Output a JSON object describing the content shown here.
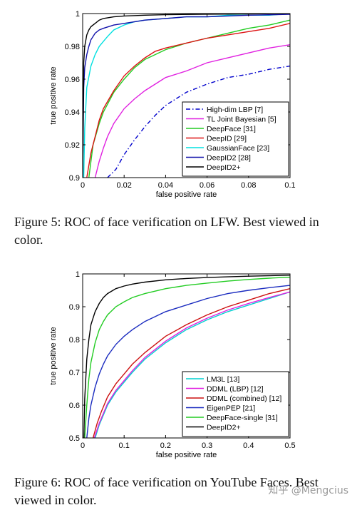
{
  "figures": [
    {
      "caption": "Figure 5: ROC of face verification on LFW. Best viewed in color."
    },
    {
      "caption": "Figure 6: ROC of face verification on YouTube Faces. Best viewed in color."
    }
  ],
  "watermark": "知乎 @Mengcius",
  "chart_data": [
    {
      "type": "line",
      "xlabel": "false positive rate",
      "ylabel": "true positive rate",
      "xlim": [
        0,
        0.1
      ],
      "ylim": [
        0.9,
        1
      ],
      "xticks": [
        0,
        0.02,
        0.04,
        0.06,
        0.08,
        0.1
      ],
      "xtick_labels": [
        "0",
        "0.02",
        "0.04",
        "0.06",
        "0.08",
        "0.1"
      ],
      "yticks": [
        0.9,
        0.92,
        0.94,
        0.96,
        0.98,
        1
      ],
      "ytick_labels": [
        "0.9",
        "0.92",
        "0.94",
        "0.96",
        "0.98",
        "1"
      ],
      "grid": false,
      "legend": "bottom-right",
      "series": [
        {
          "name": "High-dim LBP [7]",
          "color": "#0000cc",
          "dash": true,
          "x": [
            0.012,
            0.016,
            0.02,
            0.025,
            0.03,
            0.035,
            0.04,
            0.045,
            0.05,
            0.06,
            0.07,
            0.08,
            0.09,
            0.1
          ],
          "y": [
            0.9,
            0.905,
            0.914,
            0.923,
            0.931,
            0.938,
            0.944,
            0.948,
            0.952,
            0.957,
            0.961,
            0.963,
            0.966,
            0.968
          ]
        },
        {
          "name": "TL Joint Bayesian   [5]",
          "color": "#e020e0",
          "x": [
            0.006,
            0.008,
            0.01,
            0.012,
            0.015,
            0.02,
            0.025,
            0.03,
            0.035,
            0.04,
            0.05,
            0.06,
            0.07,
            0.08,
            0.09,
            0.1
          ],
          "y": [
            0.9,
            0.91,
            0.918,
            0.925,
            0.933,
            0.942,
            0.948,
            0.953,
            0.957,
            0.961,
            0.965,
            0.97,
            0.973,
            0.976,
            0.979,
            0.981
          ]
        },
        {
          "name": "DeepFace [31]",
          "color": "#22cc22",
          "x": [
            0.003,
            0.005,
            0.008,
            0.01,
            0.015,
            0.02,
            0.025,
            0.03,
            0.035,
            0.04,
            0.05,
            0.06,
            0.07,
            0.08,
            0.09,
            0.1
          ],
          "y": [
            0.9,
            0.92,
            0.933,
            0.94,
            0.952,
            0.96,
            0.967,
            0.972,
            0.975,
            0.978,
            0.982,
            0.985,
            0.988,
            0.991,
            0.993,
            0.996
          ]
        },
        {
          "name": "DeepID [29]",
          "color": "#dd1111",
          "x": [
            0.002,
            0.004,
            0.006,
            0.008,
            0.01,
            0.015,
            0.02,
            0.025,
            0.03,
            0.035,
            0.04,
            0.05,
            0.06,
            0.07,
            0.08,
            0.09,
            0.1
          ],
          "y": [
            0.9,
            0.915,
            0.925,
            0.935,
            0.942,
            0.953,
            0.962,
            0.968,
            0.973,
            0.977,
            0.979,
            0.982,
            0.985,
            0.987,
            0.989,
            0.991,
            0.994
          ]
        },
        {
          "name": "GaussianFace [23]",
          "color": "#00e0e0",
          "x": [
            0.0005,
            0.001,
            0.002,
            0.004,
            0.006,
            0.008,
            0.01,
            0.012,
            0.015,
            0.02,
            0.025,
            0.03,
            0.04,
            0.05,
            0.06,
            0.07,
            0.08,
            0.09,
            0.1
          ],
          "y": [
            0.9,
            0.93,
            0.955,
            0.968,
            0.975,
            0.98,
            0.983,
            0.986,
            0.99,
            0.993,
            0.995,
            0.996,
            0.997,
            0.998,
            0.998,
            0.999,
            0.999,
            0.999,
            1
          ]
        },
        {
          "name": "DeepID2 [28]",
          "color": "#1111aa",
          "x": [
            0,
            0.0005,
            0.001,
            0.002,
            0.003,
            0.004,
            0.006,
            0.008,
            0.01,
            0.015,
            0.02,
            0.03,
            0.04,
            0.05,
            0.06,
            0.08,
            0.1
          ],
          "y": [
            0.9,
            0.955,
            0.967,
            0.975,
            0.98,
            0.984,
            0.988,
            0.99,
            0.991,
            0.993,
            0.994,
            0.996,
            0.997,
            0.998,
            0.998,
            0.999,
            0.9995
          ]
        },
        {
          "name": "DeepID2+",
          "color": "#000000",
          "x": [
            0,
            0.0005,
            0.001,
            0.002,
            0.003,
            0.004,
            0.006,
            0.008,
            0.01,
            0.015,
            0.02,
            0.03,
            0.04,
            0.06,
            0.08,
            0.1
          ],
          "y": [
            0.9,
            0.97,
            0.98,
            0.987,
            0.99,
            0.992,
            0.994,
            0.996,
            0.997,
            0.998,
            0.9985,
            0.999,
            0.9993,
            0.9996,
            0.9998,
            1
          ]
        }
      ]
    },
    {
      "type": "line",
      "xlabel": "false positive rate",
      "ylabel": "true positive rate",
      "xlim": [
        0,
        0.5
      ],
      "ylim": [
        0.5,
        1
      ],
      "xticks": [
        0,
        0.1,
        0.2,
        0.3,
        0.4,
        0.5
      ],
      "xtick_labels": [
        "0",
        "0.1",
        "0.2",
        "0.3",
        "0.4",
        "0.5"
      ],
      "yticks": [
        0.5,
        0.6,
        0.7,
        0.8,
        0.9,
        1
      ],
      "ytick_labels": [
        "0.5",
        "0.6",
        "0.7",
        "0.8",
        "0.9",
        "1"
      ],
      "grid": false,
      "legend": "bottom-right",
      "series": [
        {
          "name": "LM3L [13]",
          "color": "#00d0d0",
          "x": [
            0.03,
            0.04,
            0.05,
            0.06,
            0.08,
            0.1,
            0.12,
            0.15,
            0.2,
            0.25,
            0.3,
            0.35,
            0.4,
            0.45,
            0.5
          ],
          "y": [
            0.5,
            0.54,
            0.57,
            0.6,
            0.64,
            0.67,
            0.7,
            0.74,
            0.79,
            0.83,
            0.86,
            0.885,
            0.905,
            0.925,
            0.945
          ]
        },
        {
          "name": "DDML (LBP)   [12]",
          "color": "#e020e0",
          "x": [
            0.028,
            0.04,
            0.05,
            0.06,
            0.08,
            0.1,
            0.12,
            0.15,
            0.2,
            0.25,
            0.3,
            0.35,
            0.4,
            0.45,
            0.5
          ],
          "y": [
            0.5,
            0.545,
            0.575,
            0.605,
            0.645,
            0.675,
            0.705,
            0.745,
            0.795,
            0.835,
            0.865,
            0.89,
            0.91,
            0.928,
            0.945
          ]
        },
        {
          "name": "DDML (combined) [12]",
          "color": "#cc1111",
          "x": [
            0.025,
            0.035,
            0.045,
            0.06,
            0.08,
            0.1,
            0.12,
            0.15,
            0.2,
            0.25,
            0.3,
            0.35,
            0.4,
            0.45,
            0.5
          ],
          "y": [
            0.5,
            0.545,
            0.58,
            0.625,
            0.665,
            0.695,
            0.725,
            0.76,
            0.81,
            0.845,
            0.875,
            0.9,
            0.92,
            0.94,
            0.955
          ]
        },
        {
          "name": "EigenPEP [21]",
          "color": "#1a2bbf",
          "x": [
            0.01,
            0.015,
            0.02,
            0.03,
            0.04,
            0.05,
            0.06,
            0.08,
            0.1,
            0.12,
            0.15,
            0.2,
            0.25,
            0.3,
            0.35,
            0.4,
            0.45,
            0.5
          ],
          "y": [
            0.5,
            0.56,
            0.6,
            0.655,
            0.695,
            0.725,
            0.75,
            0.785,
            0.81,
            0.83,
            0.855,
            0.885,
            0.905,
            0.925,
            0.94,
            0.95,
            0.958,
            0.965
          ]
        },
        {
          "name": "DeepFace-single [31]",
          "color": "#22cc22",
          "x": [
            0.005,
            0.01,
            0.015,
            0.02,
            0.03,
            0.04,
            0.05,
            0.06,
            0.08,
            0.1,
            0.12,
            0.15,
            0.2,
            0.25,
            0.3,
            0.35,
            0.4,
            0.45,
            0.5
          ],
          "y": [
            0.5,
            0.6,
            0.68,
            0.73,
            0.79,
            0.83,
            0.855,
            0.875,
            0.9,
            0.915,
            0.928,
            0.94,
            0.955,
            0.965,
            0.972,
            0.978,
            0.983,
            0.987,
            0.99
          ]
        },
        {
          "name": "DeepID2+",
          "color": "#000000",
          "x": [
            0.003,
            0.005,
            0.01,
            0.015,
            0.02,
            0.03,
            0.04,
            0.05,
            0.06,
            0.08,
            0.1,
            0.12,
            0.15,
            0.2,
            0.25,
            0.3,
            0.35,
            0.4,
            0.5
          ],
          "y": [
            0.5,
            0.62,
            0.74,
            0.8,
            0.845,
            0.885,
            0.91,
            0.928,
            0.94,
            0.955,
            0.963,
            0.969,
            0.975,
            0.982,
            0.986,
            0.989,
            0.991,
            0.993,
            0.996
          ]
        }
      ]
    }
  ]
}
